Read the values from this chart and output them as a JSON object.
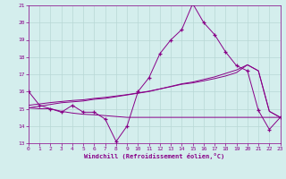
{
  "x": [
    0,
    1,
    2,
    3,
    4,
    5,
    6,
    7,
    8,
    9,
    10,
    11,
    12,
    13,
    14,
    15,
    16,
    17,
    18,
    19,
    20,
    21,
    22,
    23
  ],
  "y_main": [
    16.0,
    15.2,
    15.0,
    14.8,
    15.2,
    14.8,
    14.8,
    14.4,
    13.1,
    14.0,
    16.0,
    16.8,
    18.2,
    19.0,
    19.6,
    21.1,
    20.0,
    19.3,
    18.3,
    17.5,
    17.2,
    14.9,
    13.8,
    14.5
  ],
  "y_trend1": [
    15.05,
    15.15,
    15.25,
    15.35,
    15.4,
    15.45,
    15.55,
    15.6,
    15.7,
    15.8,
    15.9,
    16.0,
    16.15,
    16.3,
    16.45,
    16.55,
    16.7,
    16.85,
    17.05,
    17.25,
    17.55,
    17.2,
    14.85,
    14.5
  ],
  "y_trend2": [
    15.2,
    15.28,
    15.36,
    15.42,
    15.48,
    15.52,
    15.6,
    15.66,
    15.74,
    15.82,
    15.92,
    16.02,
    16.15,
    16.28,
    16.42,
    16.5,
    16.62,
    16.75,
    16.9,
    17.1,
    17.55,
    17.2,
    14.85,
    14.5
  ],
  "y_flat": [
    15.05,
    15.0,
    15.0,
    14.85,
    14.75,
    14.68,
    14.65,
    14.6,
    14.55,
    14.5,
    14.5,
    14.5,
    14.5,
    14.5,
    14.5,
    14.5,
    14.5,
    14.5,
    14.5,
    14.5,
    14.5,
    14.5,
    14.5,
    14.5
  ],
  "line_color": "#880088",
  "bg_color": "#d4eeed",
  "grid_color": "#b8d8d6",
  "xlabel": "Windchill (Refroidissement éolien,°C)",
  "ylim": [
    13,
    21
  ],
  "xlim": [
    0,
    23
  ],
  "yticks": [
    13,
    14,
    15,
    16,
    17,
    18,
    19,
    20,
    21
  ],
  "xticks": [
    0,
    1,
    2,
    3,
    4,
    5,
    6,
    7,
    8,
    9,
    10,
    11,
    12,
    13,
    14,
    15,
    16,
    17,
    18,
    19,
    20,
    21,
    22,
    23
  ]
}
